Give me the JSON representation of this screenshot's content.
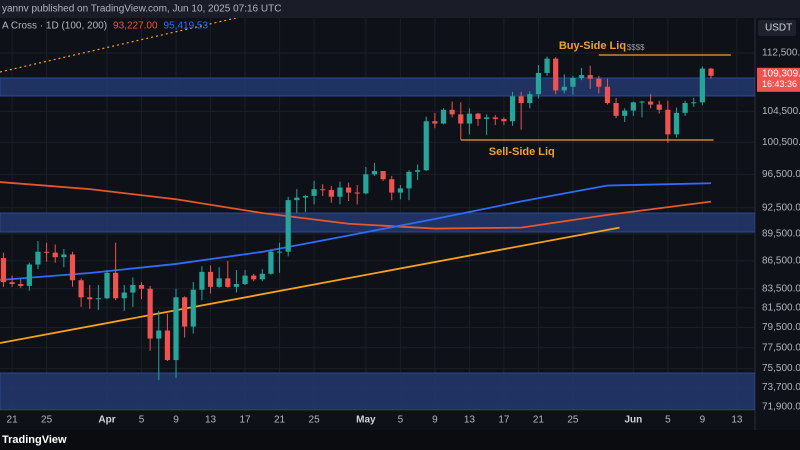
{
  "chart_data": {
    "type": "candlestick",
    "publisher_line": "yannv published on TradingView.com, Jun 10, 2025 07:16 UTC",
    "indicator": "A Cross · 1D (100, 200)",
    "currency": "USDT",
    "countdown": "16:43:36",
    "price_tag": "109,309.4",
    "brand": "TradingView",
    "log": true,
    "grid": true,
    "up_color": "#26a69a",
    "down_color": "#ef5350",
    "xlim": [
      -0.4,
      87.1
    ],
    "ylim": [
      71630,
      117590
    ],
    "yticks": [
      {
        "value": 112500,
        "label": "112,500.00"
      },
      {
        "value": 104500,
        "label": "104,500.00"
      },
      {
        "value": 100500,
        "label": "100,500.00"
      },
      {
        "value": 96500,
        "label": "96,500.00"
      },
      {
        "value": 92500,
        "label": "92,500.00"
      },
      {
        "value": 89500,
        "label": "89,500.00"
      },
      {
        "value": 86500,
        "label": "86,500.00"
      },
      {
        "value": 83500,
        "label": "83,500.00"
      },
      {
        "value": 81500,
        "label": "81,500.00"
      },
      {
        "value": 79500,
        "label": "79,500.00"
      },
      {
        "value": 77500,
        "label": "77,500.00"
      },
      {
        "value": 75500,
        "label": "75,500.00"
      },
      {
        "value": 73700,
        "label": "73,700.00"
      },
      {
        "value": 71900,
        "label": "71,900.00"
      }
    ],
    "xticks": [
      {
        "value": 1,
        "label": "21"
      },
      {
        "value": 5,
        "label": "25"
      },
      {
        "value": 12,
        "label": "Apr"
      },
      {
        "value": 16,
        "label": "5"
      },
      {
        "value": 20,
        "label": "9"
      },
      {
        "value": 24,
        "label": "13"
      },
      {
        "value": 28,
        "label": "17"
      },
      {
        "value": 32,
        "label": "21"
      },
      {
        "value": 36,
        "label": "25"
      },
      {
        "value": 42,
        "label": "May"
      },
      {
        "value": 46,
        "label": "5"
      },
      {
        "value": 50,
        "label": "9"
      },
      {
        "value": 54,
        "label": "13"
      },
      {
        "value": 58,
        "label": "17"
      },
      {
        "value": 62,
        "label": "21"
      },
      {
        "value": 66,
        "label": "25"
      },
      {
        "value": 73,
        "label": "Jun"
      },
      {
        "value": 77,
        "label": "5"
      },
      {
        "value": 81,
        "label": "9"
      },
      {
        "value": 85,
        "label": "13"
      }
    ],
    "candles": {
      "open": [
        86800,
        84200,
        84000,
        83800,
        86100,
        87500,
        87400,
        86900,
        87200,
        84400,
        82600,
        82400,
        82500,
        85200,
        82500,
        83100,
        83900,
        83500,
        78400,
        79200,
        76300,
        82600,
        79600,
        83400,
        85300,
        83700,
        84600,
        83700,
        84000,
        84900,
        84500,
        85100,
        87500,
        87500,
        93400,
        93700,
        93900,
        94700,
        94600,
        93800,
        94900,
        94300,
        94200,
        96500,
        96900,
        95900,
        94300,
        94800,
        96800,
        97000,
        103200,
        102900,
        104700,
        104100,
        102900,
        104200,
        103500,
        103700,
        103500,
        103200,
        106500,
        105600,
        106800,
        109700,
        111700,
        107300,
        107800,
        109000,
        109400,
        108900,
        107800,
        105600,
        103900,
        104600,
        105700,
        105800,
        105400,
        104700,
        101500,
        104300,
        105600,
        105700,
        110300
      ],
      "high": [
        87400,
        84900,
        84500,
        86300,
        88700,
        88500,
        88300,
        87800,
        87500,
        84600,
        83900,
        83900,
        85500,
        88500,
        83900,
        84700,
        84200,
        83800,
        81200,
        80900,
        83500,
        82700,
        84200,
        85900,
        86000,
        85800,
        86500,
        85500,
        85500,
        85100,
        85600,
        87700,
        88500,
        93800,
        94700,
        94000,
        95700,
        95300,
        95100,
        95600,
        95500,
        95200,
        97400,
        97900,
        96900,
        96300,
        95200,
        97000,
        97700,
        103800,
        104300,
        104900,
        105800,
        105700,
        104900,
        104300,
        104100,
        104000,
        103700,
        107100,
        107100,
        107200,
        110800,
        112000,
        111900,
        109500,
        109300,
        110400,
        110700,
        109300,
        108900,
        106300,
        104900,
        105800,
        105900,
        106800,
        105900,
        105900,
        105000,
        105900,
        106300,
        110600,
        110400
      ],
      "low": [
        83700,
        83700,
        83600,
        83300,
        85600,
        86400,
        86300,
        85800,
        83700,
        81600,
        81400,
        81300,
        82400,
        82300,
        81200,
        81600,
        82400,
        77200,
        74400,
        76200,
        74600,
        78500,
        78900,
        82300,
        83000,
        83600,
        83600,
        83100,
        83900,
        84300,
        84300,
        85000,
        85200,
        87000,
        91900,
        92000,
        92900,
        93900,
        93100,
        92900,
        93300,
        92900,
        94100,
        96300,
        95700,
        93400,
        93500,
        93400,
        95800,
        96900,
        102300,
        102800,
        103700,
        100800,
        101500,
        102600,
        101400,
        102700,
        102700,
        102600,
        102100,
        104900,
        106200,
        109300,
        106800,
        106900,
        106700,
        108700,
        107500,
        106900,
        105400,
        103600,
        103100,
        103900,
        103700,
        104900,
        104200,
        100400,
        101100,
        103900,
        105100,
        105300,
        108900
      ],
      "close": [
        84200,
        84000,
        83800,
        86100,
        87500,
        87400,
        86900,
        87200,
        84400,
        82600,
        82400,
        82500,
        85200,
        82500,
        83100,
        83900,
        83500,
        78400,
        79200,
        76300,
        82600,
        79600,
        83400,
        85300,
        83700,
        84600,
        83700,
        84000,
        84900,
        84500,
        85100,
        87500,
        87520,
        93400,
        93700,
        93900,
        94700,
        94600,
        93800,
        94900,
        94300,
        94200,
        96500,
        96900,
        95900,
        94300,
        94800,
        96800,
        97000,
        103200,
        102900,
        104700,
        104100,
        102900,
        104200,
        103500,
        103700,
        103500,
        103200,
        106500,
        105600,
        106800,
        109700,
        111700,
        107300,
        107800,
        109000,
        109400,
        108900,
        107800,
        105600,
        103900,
        104600,
        105700,
        105800,
        105400,
        104700,
        101500,
        104300,
        105600,
        105700,
        110300,
        109300
      ]
    },
    "zones": [
      {
        "top": 109000,
        "bottom": 106550
      },
      {
        "top": 91890,
        "bottom": 89710
      },
      {
        "top": 75060,
        "bottom": 71630
      }
    ],
    "ma_lines": [
      {
        "color": "#e8562a",
        "x": [
          -0.4,
          10,
          20,
          30,
          40,
          50,
          60,
          70,
          82
        ],
        "values": [
          95560,
          94710,
          93500,
          91890,
          90650,
          90100,
          90210,
          91670,
          93227
        ],
        "value_label": "93,227.00"
      },
      {
        "color": "#2f6bff",
        "x": [
          -0.4,
          10,
          20,
          30,
          40,
          50,
          60,
          70,
          82
        ],
        "values": [
          84430,
          85180,
          86160,
          87490,
          89320,
          91200,
          93250,
          95140,
          95419.53
        ],
        "value_label": "95,419.53"
      }
    ],
    "trendlines": [
      {
        "color": "#f7a21b",
        "dashed": false,
        "x": [
          -0.4,
          71.4
        ],
        "values": [
          77960,
          90210
        ]
      },
      {
        "color": "#f7a21b",
        "dashed": true,
        "x": [
          -0.4,
          28
        ],
        "values": [
          109830,
          117900
        ]
      }
    ],
    "levels": [
      {
        "label": "Buy-Side Liq",
        "marker": "$$$$",
        "color": "#f0a030",
        "value": 112216,
        "x": [
          69,
          84.3
        ]
      },
      {
        "label": "Sell-Side Liq",
        "color": "#f0a030",
        "value": 100780,
        "x": [
          53,
          82.3
        ]
      }
    ]
  }
}
